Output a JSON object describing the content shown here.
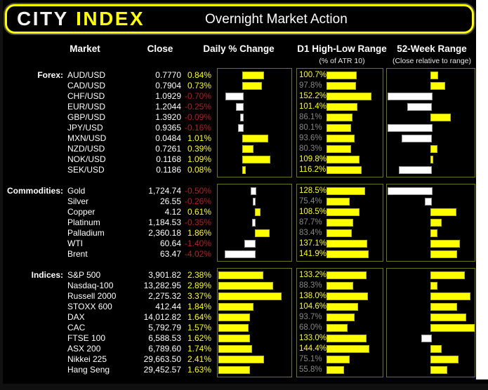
{
  "header": {
    "logo_primary": "CITY",
    "logo_accent": "INDEX",
    "title": "Overnight Market Action"
  },
  "columns": {
    "market": "Market",
    "close": "Close",
    "daily": "Daily % Change",
    "d1": "D1 High-Low Range",
    "d1_sub": "(% of ATR 10)",
    "w52": "52-Week Range",
    "w52_sub": "(Close relative to range)"
  },
  "colors": {
    "accent_yellow": "#ffff00",
    "negative_red": "#b02323",
    "muted_gray": "#878787",
    "bar_positive": "#ffff00",
    "bar_negative": "#ffffff",
    "panel_border": "#72721c",
    "background": "#000000"
  },
  "chart_data": {
    "type": "bar",
    "title": "Overnight Market Action",
    "legend": "Daily % Change and 52-Week bars: yellow = positive/above mid-range (right), white = negative/below mid-range (left). D1 High-Low Range bars scaled 0-190% of ATR 10; values >=100% shown yellow, else gray.",
    "d1_axis_max": 190,
    "w52_axis": [
      -1,
      1
    ],
    "groups": [
      {
        "label": "Forex:",
        "daily_min": -1,
        "daily_max": 2,
        "rows": [
          {
            "market": "AUD/USD",
            "close": "0.7770",
            "daily": 0.84,
            "daily_label": "0.84%",
            "d1": 100.7,
            "d1_label": "100.7%",
            "w52": 0.15
          },
          {
            "market": "CAD/USD",
            "close": "0.7904",
            "daily": 0.73,
            "daily_label": "0.73%",
            "d1": 97.8,
            "d1_label": "97.8%",
            "w52": 0.3
          },
          {
            "market": "CHF/USD",
            "close": "1.0929",
            "daily": -0.7,
            "daily_label": "-0.70%",
            "d1": 152.2,
            "d1_label": "152.2%",
            "w52": -1.0
          },
          {
            "market": "EUR/USD",
            "close": "1.2044",
            "daily": -0.25,
            "daily_label": "-0.25%",
            "d1": 101.4,
            "d1_label": "101.4%",
            "w52": -0.53
          },
          {
            "market": "GBP/USD",
            "close": "1.3920",
            "daily": -0.09,
            "daily_label": "-0.09%",
            "d1": 86.1,
            "d1_label": "86.1%",
            "w52": 0.44
          },
          {
            "market": "JPY/USD",
            "close": "0.9365",
            "daily": -0.16,
            "daily_label": "-0.16%",
            "d1": 80.1,
            "d1_label": "80.1%",
            "w52": -1.0
          },
          {
            "market": "MXN/USD",
            "close": "0.0484",
            "daily": 1.01,
            "daily_label": "1.01%",
            "d1": 93.6,
            "d1_label": "93.6%",
            "w52": -0.66
          },
          {
            "market": "NZD/USD",
            "close": "0.7261",
            "daily": 0.39,
            "daily_label": "0.39%",
            "d1": 80.3,
            "d1_label": "80.3%",
            "w52": 0.13
          },
          {
            "market": "NOK/USD",
            "close": "0.1168",
            "daily": 1.09,
            "daily_label": "1.09%",
            "d1": 109.8,
            "d1_label": "109.8%",
            "w52": 0.04
          },
          {
            "market": "SEK/USD",
            "close": "0.1186",
            "daily": 0.08,
            "daily_label": "0.08%",
            "d1": 116.2,
            "d1_label": "116.2%",
            "w52": -0.72
          }
        ]
      },
      {
        "label": "Commodities:",
        "daily_min": -5,
        "daily_max": 5,
        "rows": [
          {
            "market": "Gold",
            "close": "1,724.74",
            "daily": -0.5,
            "daily_label": "-0.50%",
            "d1": 128.5,
            "d1_label": "128.5%",
            "w52": -1.0
          },
          {
            "market": "Silver",
            "close": "26.55",
            "daily": -0.26,
            "daily_label": "-0.26%",
            "d1": 75.4,
            "d1_label": "75.4%",
            "w52": -0.13
          },
          {
            "market": "Copper",
            "close": "4.12",
            "daily": 0.61,
            "daily_label": "0.61%",
            "d1": 108.5,
            "d1_label": "108.5%",
            "w52": 0.56
          },
          {
            "market": "Platinum",
            "close": "1,184.53",
            "daily": -0.35,
            "daily_label": "-0.35%",
            "d1": 87.7,
            "d1_label": "87.7%",
            "w52": 0.23
          },
          {
            "market": "Palladium",
            "close": "2,360.18",
            "daily": 1.86,
            "daily_label": "1.86%",
            "d1": 83.4,
            "d1_label": "83.4%",
            "w52": 0.13
          },
          {
            "market": "WTI",
            "close": "60.64",
            "daily": -1.4,
            "daily_label": "-1.40%",
            "d1": 137.1,
            "d1_label": "137.1%",
            "w52": 0.65
          },
          {
            "market": "Brent",
            "close": "63.47",
            "daily": -4.02,
            "daily_label": "-4.02%",
            "d1": 141.9,
            "d1_label": "141.9%",
            "w52": 0.58
          }
        ]
      },
      {
        "label": "Indices:",
        "daily_min": 0,
        "daily_max": 4,
        "rows": [
          {
            "market": "S&P 500",
            "close": "3,901.82",
            "daily": 2.38,
            "daily_label": "2.38%",
            "d1": 133.2,
            "d1_label": "133.2%",
            "w52": 0.76
          },
          {
            "market": "Nasdaq-100",
            "close": "13,282.95",
            "daily": 2.89,
            "daily_label": "2.89%",
            "d1": 88.3,
            "d1_label": "88.3%",
            "w52": 0.13
          },
          {
            "market": "Russell 2000",
            "close": "2,275.32",
            "daily": 3.37,
            "daily_label": "3.37%",
            "d1": 138.0,
            "d1_label": "138.0%",
            "w52": 0.89
          },
          {
            "market": "STOXX 600",
            "close": "412.44",
            "daily": 1.84,
            "daily_label": "1.84%",
            "d1": 104.6,
            "d1_label": "104.6%",
            "w52": 0.58
          },
          {
            "market": "DAX",
            "close": "14,012.82",
            "daily": 1.64,
            "daily_label": "1.64%",
            "d1": 93.7,
            "d1_label": "93.7%",
            "w52": 0.79
          },
          {
            "market": "CAC",
            "close": "5,792.79",
            "daily": 1.57,
            "daily_label": "1.57%",
            "d1": 68.0,
            "d1_label": "68.0%",
            "w52": 0.98
          },
          {
            "market": "FTSE 100",
            "close": "6,588.53",
            "daily": 1.62,
            "daily_label": "1.62%",
            "d1": 133.0,
            "d1_label": "133.0%",
            "w52": -0.21
          },
          {
            "market": "ASX 200",
            "close": "6,789.60",
            "daily": 1.74,
            "daily_label": "1.74%",
            "d1": 144.4,
            "d1_label": "144.4%",
            "w52": 0.23
          },
          {
            "market": "Nikkei 225",
            "close": "29,663.50",
            "daily": 2.41,
            "daily_label": "2.41%",
            "d1": 75.1,
            "d1_label": "75.1%",
            "w52": 0.61
          },
          {
            "market": "Hang Seng",
            "close": "29,452.57",
            "daily": 1.63,
            "daily_label": "1.63%",
            "d1": 55.8,
            "d1_label": "55.8%",
            "w52": 0.35
          }
        ]
      }
    ]
  }
}
